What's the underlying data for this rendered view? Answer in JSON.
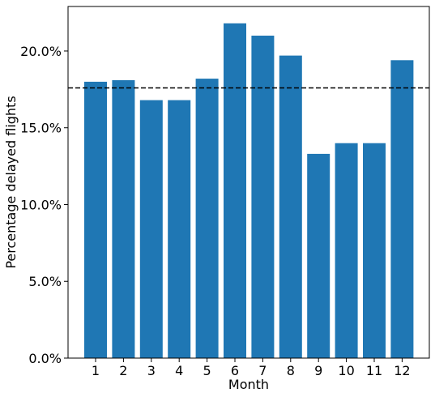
{
  "chart_data": {
    "type": "bar",
    "title": "",
    "xlabel": "Month",
    "ylabel": "Percentage delayed flights",
    "categories": [
      "1",
      "2",
      "3",
      "4",
      "5",
      "6",
      "7",
      "8",
      "9",
      "10",
      "11",
      "12"
    ],
    "values": [
      18.0,
      18.1,
      16.8,
      16.8,
      18.2,
      21.8,
      21.0,
      19.7,
      13.3,
      14.0,
      14.0,
      19.4
    ],
    "ylim": [
      0,
      22.9
    ],
    "yticks": [
      0,
      5,
      10,
      15,
      20
    ],
    "ytick_labels": [
      "0.0%",
      "5.0%",
      "10.0%",
      "15.0%",
      "20.0%"
    ],
    "reference_line": {
      "value": 17.6,
      "style": "dashed",
      "color": "#000000"
    },
    "bar_color": "#1f77b4",
    "grid": false,
    "legend": "none"
  }
}
